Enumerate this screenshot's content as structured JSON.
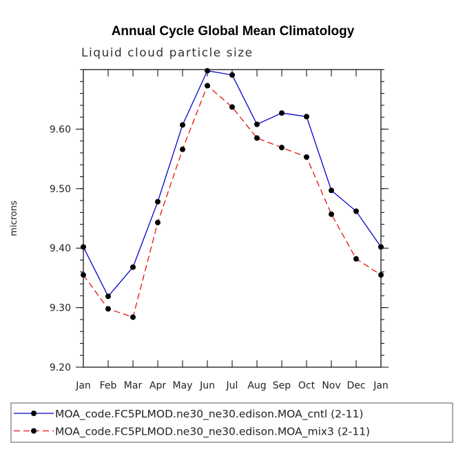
{
  "chart_data": {
    "type": "line",
    "title": "Annual Cycle Global Mean Climatology",
    "subtitle": "Liquid cloud particle size",
    "ylabel": "microns",
    "xlabel": "",
    "categories": [
      "Jan",
      "Feb",
      "Mar",
      "Apr",
      "May",
      "Jun",
      "Jul",
      "Aug",
      "Sep",
      "Oct",
      "Nov",
      "Dec",
      "Jan"
    ],
    "ylim": [
      9.2,
      9.7
    ],
    "yticks": [
      "9.20",
      "9.30",
      "9.40",
      "9.50",
      "9.60"
    ],
    "series": [
      {
        "name": "MOA_code.FC5PLMOD.ne30_ne30.edison.MOA_cntl (2-11)",
        "color": "#0000cc",
        "dash": "solid",
        "values": [
          9.402,
          9.319,
          9.368,
          9.478,
          9.607,
          9.698,
          9.691,
          9.608,
          9.627,
          9.621,
          9.497,
          9.462,
          9.402
        ]
      },
      {
        "name": "MOA_code.FC5PLMOD.ne30_ne30.edison.MOA_mix3 (2-11)",
        "color": "#e81010",
        "dash": "dashed",
        "values": [
          9.355,
          9.298,
          9.284,
          9.443,
          9.566,
          9.673,
          9.637,
          9.585,
          9.569,
          9.553,
          9.457,
          9.382,
          9.355
        ]
      }
    ],
    "legend_position": "bottom"
  }
}
